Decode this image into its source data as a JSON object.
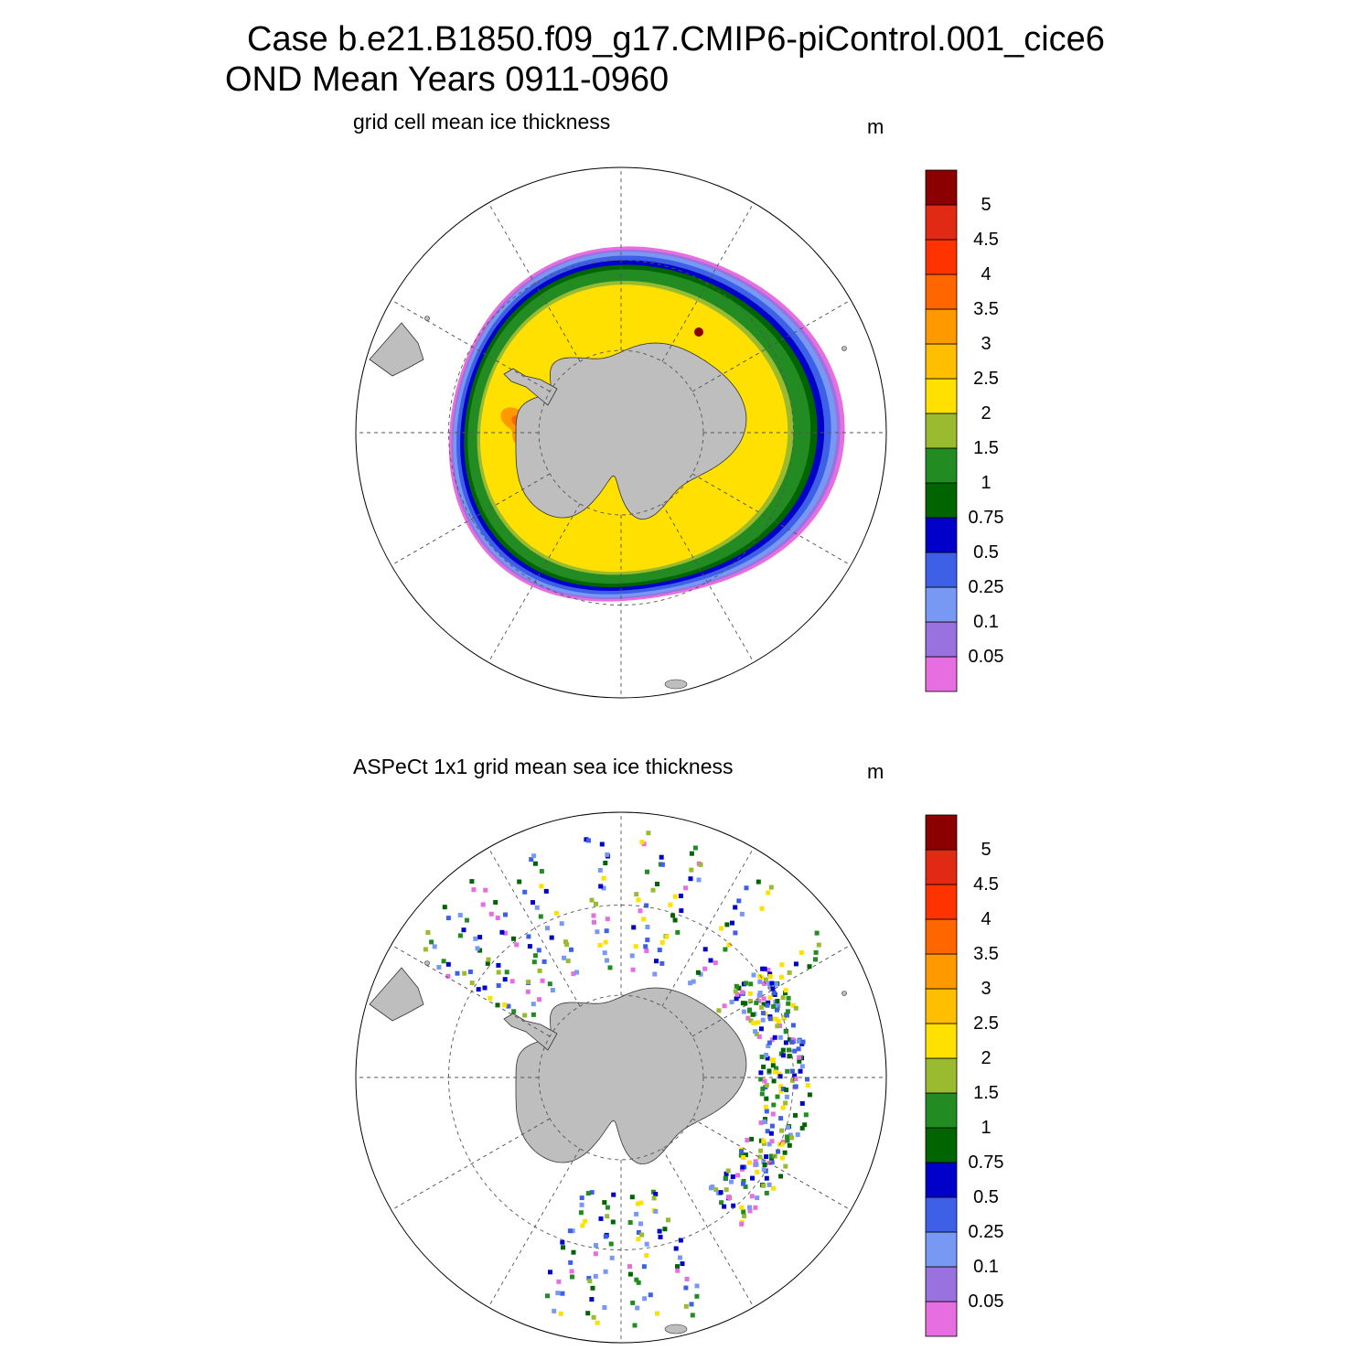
{
  "figure": {
    "title_line_1": "Case b.e21.B1850.f09_g17.CMIP6-piControl.001_cice6",
    "title_line_2": "OND Mean   Years 0911-0960"
  },
  "colors": {
    "land": "#bebebe",
    "grid": "#555555",
    "levels": [
      "#e76ee0",
      "#9a72df",
      "#7799f4",
      "#3e60e7",
      "#0000c8",
      "#006400",
      "#228b22",
      "#9abb2f",
      "#ffe000",
      "#ffbf00",
      "#ff9900",
      "#ff6600",
      "#ff3300",
      "#e02a14",
      "#8b0000"
    ]
  },
  "chart_data": [
    {
      "type": "heatmap",
      "title": "grid cell mean ice thickness",
      "units": "m",
      "projection": "south polar stereographic",
      "colorbar": {
        "labels": [
          "0.05",
          "0.1",
          "0.25",
          "0.5",
          "0.75",
          "1",
          "1.5",
          "2",
          "2.5",
          "3",
          "3.5",
          "4",
          "4.5",
          "5"
        ]
      }
    },
    {
      "type": "heatmap",
      "title": "ASPeCt 1x1 grid mean sea ice thickness",
      "units": "m",
      "projection": "south polar stereographic",
      "colorbar": {
        "labels": [
          "0.05",
          "0.1",
          "0.25",
          "0.5",
          "0.75",
          "1",
          "1.5",
          "2",
          "2.5",
          "3",
          "3.5",
          "4",
          "4.5",
          "5"
        ]
      }
    }
  ]
}
